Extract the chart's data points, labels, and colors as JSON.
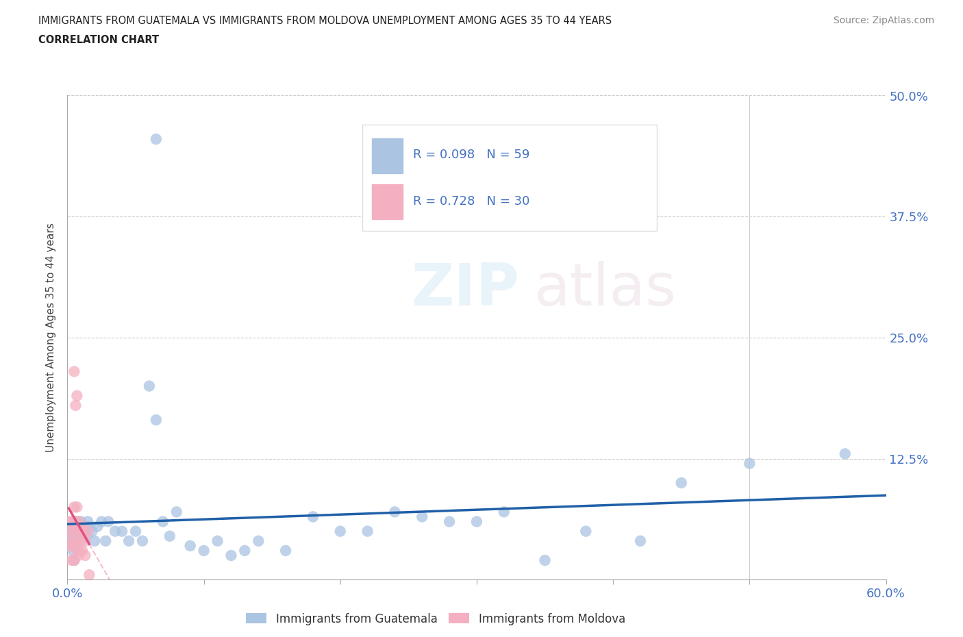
{
  "title_line1": "IMMIGRANTS FROM GUATEMALA VS IMMIGRANTS FROM MOLDOVA UNEMPLOYMENT AMONG AGES 35 TO 44 YEARS",
  "title_line2": "CORRELATION CHART",
  "source": "Source: ZipAtlas.com",
  "ylabel": "Unemployment Among Ages 35 to 44 years",
  "xlim": [
    0.0,
    0.6
  ],
  "ylim": [
    0.0,
    0.5
  ],
  "xticks": [
    0.0,
    0.1,
    0.2,
    0.3,
    0.4,
    0.5,
    0.6
  ],
  "xticklabels": [
    "0.0%",
    "",
    "",
    "",
    "",
    "",
    "60.0%"
  ],
  "yticks": [
    0.0,
    0.125,
    0.25,
    0.375,
    0.5
  ],
  "yticklabels_right": [
    "",
    "12.5%",
    "25.0%",
    "37.5%",
    "50.0%"
  ],
  "guatemala_R": 0.098,
  "guatemala_N": 59,
  "moldova_R": 0.728,
  "moldova_N": 30,
  "guatemala_color": "#aac4e2",
  "moldova_color": "#f4afc0",
  "guatemala_line_color": "#2060a8",
  "moldova_line_color": "#e05080",
  "moldova_dash_color": "#f0a0b8",
  "legend_label_guatemala": "Immigrants from Guatemala",
  "legend_label_moldova": "Immigrants from Moldova",
  "guat_x": [
    0.002,
    0.003,
    0.003,
    0.004,
    0.004,
    0.005,
    0.005,
    0.005,
    0.006,
    0.006,
    0.007,
    0.007,
    0.008,
    0.009,
    0.01,
    0.011,
    0.012,
    0.013,
    0.014,
    0.015,
    0.016,
    0.018,
    0.02,
    0.022,
    0.025,
    0.028,
    0.03,
    0.035,
    0.04,
    0.045,
    0.05,
    0.055,
    0.06,
    0.065,
    0.07,
    0.075,
    0.08,
    0.09,
    0.1,
    0.11,
    0.12,
    0.13,
    0.14,
    0.16,
    0.18,
    0.2,
    0.22,
    0.24,
    0.26,
    0.28,
    0.3,
    0.32,
    0.35,
    0.38,
    0.42,
    0.45,
    0.5,
    0.57,
    0.065
  ],
  "guat_y": [
    0.055,
    0.045,
    0.035,
    0.05,
    0.03,
    0.06,
    0.04,
    0.02,
    0.055,
    0.035,
    0.06,
    0.04,
    0.05,
    0.045,
    0.06,
    0.05,
    0.055,
    0.05,
    0.045,
    0.06,
    0.055,
    0.05,
    0.04,
    0.055,
    0.06,
    0.04,
    0.06,
    0.05,
    0.05,
    0.04,
    0.05,
    0.04,
    0.2,
    0.165,
    0.06,
    0.045,
    0.07,
    0.035,
    0.03,
    0.04,
    0.025,
    0.03,
    0.04,
    0.03,
    0.065,
    0.05,
    0.05,
    0.07,
    0.065,
    0.06,
    0.06,
    0.07,
    0.02,
    0.05,
    0.04,
    0.1,
    0.12,
    0.13,
    0.455
  ],
  "mold_x": [
    0.001,
    0.002,
    0.002,
    0.003,
    0.003,
    0.003,
    0.004,
    0.004,
    0.005,
    0.005,
    0.005,
    0.006,
    0.006,
    0.006,
    0.007,
    0.007,
    0.007,
    0.008,
    0.008,
    0.009,
    0.009,
    0.01,
    0.01,
    0.011,
    0.011,
    0.012,
    0.013,
    0.013,
    0.015,
    0.016
  ],
  "mold_y": [
    0.06,
    0.05,
    0.035,
    0.06,
    0.04,
    0.02,
    0.05,
    0.035,
    0.075,
    0.215,
    0.02,
    0.06,
    0.18,
    0.04,
    0.075,
    0.19,
    0.03,
    0.06,
    0.025,
    0.05,
    0.03,
    0.05,
    0.04,
    0.055,
    0.03,
    0.045,
    0.04,
    0.025,
    0.05,
    0.005
  ]
}
